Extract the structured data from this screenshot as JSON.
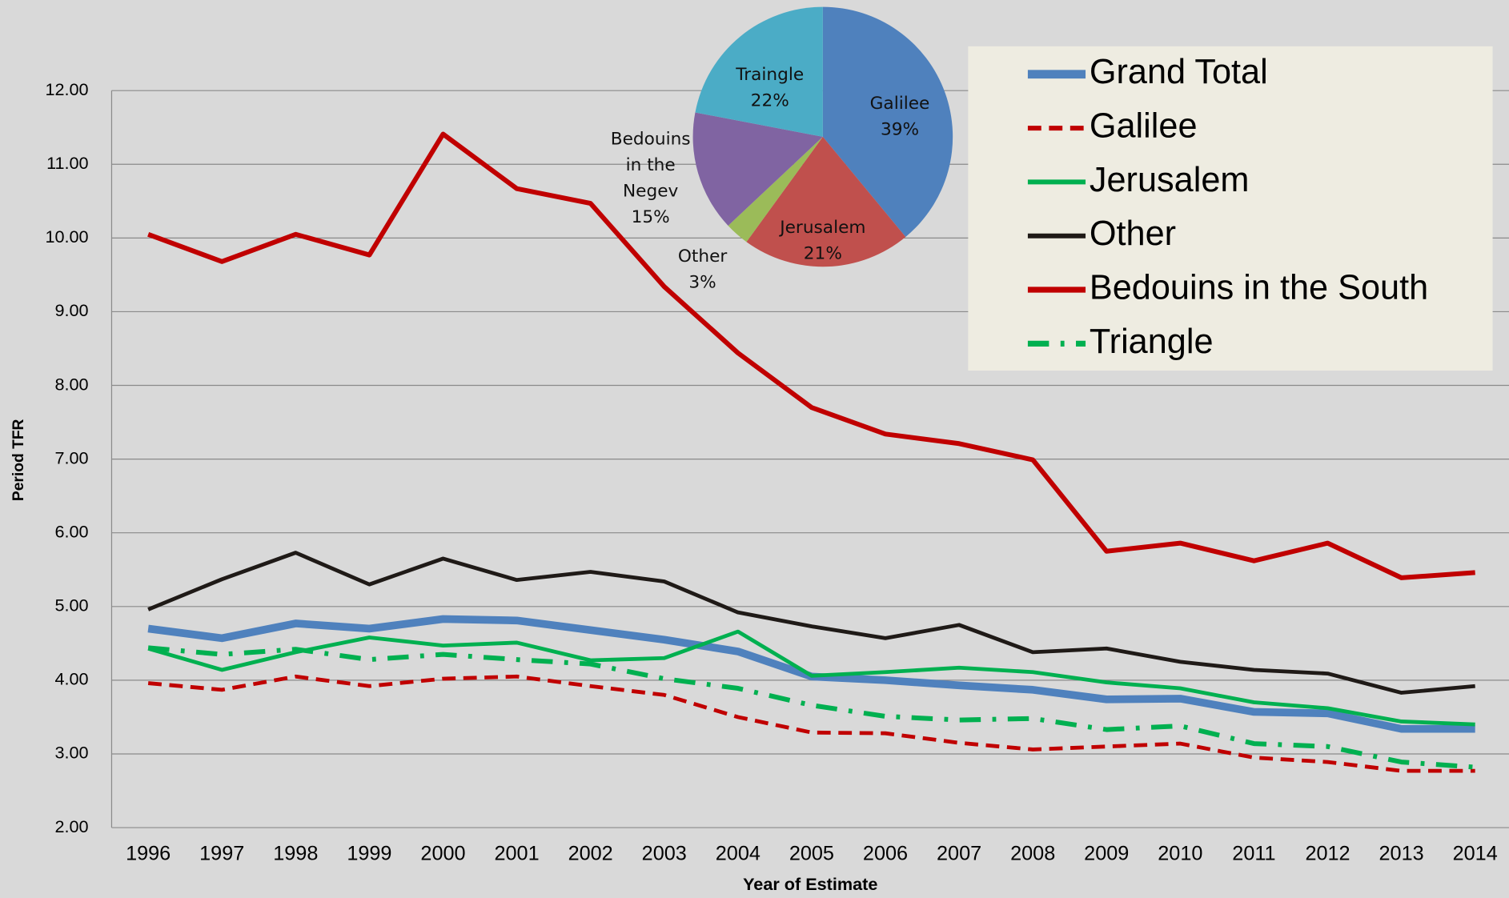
{
  "chart_data": [
    {
      "type": "line",
      "y_label": "Period TFR",
      "x_label": "Year of Estimate",
      "categories": [
        "1996",
        "1997",
        "1998",
        "1999",
        "2000",
        "2001",
        "2002",
        "2003",
        "2004",
        "2005",
        "2006",
        "2007",
        "2008",
        "2009",
        "2010",
        "2011",
        "2012",
        "2013",
        "2014"
      ],
      "ylim": [
        2,
        12
      ],
      "yticks": [
        {
          "value": 2,
          "label": "2.00"
        },
        {
          "value": 3,
          "label": "3.00"
        },
        {
          "value": 4,
          "label": "4.00"
        },
        {
          "value": 5,
          "label": "5.00"
        },
        {
          "value": 6,
          "label": "6.00"
        },
        {
          "value": 7,
          "label": "7.00"
        },
        {
          "value": 8,
          "label": "8.00"
        },
        {
          "value": 9,
          "label": "9.00"
        },
        {
          "value": 10,
          "label": "10.00"
        },
        {
          "value": 11,
          "label": "11.00"
        },
        {
          "value": 12,
          "label": "12.00"
        }
      ],
      "grid": true,
      "legend": "upper right",
      "series": [
        {
          "name": "Grand Total",
          "color": "#4f81bd",
          "style": "solid",
          "width": 8,
          "values": [
            4.7,
            4.57,
            4.77,
            4.7,
            4.83,
            4.81,
            4.68,
            4.55,
            4.39,
            4.05,
            4.0,
            3.93,
            3.87,
            3.74,
            3.75,
            3.57,
            3.55,
            3.34,
            3.34
          ]
        },
        {
          "name": "Galilee",
          "color": "#c00000",
          "style": "dashed",
          "width": 4,
          "values": [
            3.96,
            3.87,
            4.05,
            3.92,
            4.02,
            4.05,
            3.92,
            3.8,
            3.5,
            3.29,
            3.28,
            3.15,
            3.06,
            3.1,
            3.14,
            2.95,
            2.89,
            2.77,
            2.77
          ]
        },
        {
          "name": "Jerusalem",
          "color": "#00b050",
          "style": "solid",
          "width": 4,
          "values": [
            4.43,
            4.14,
            4.38,
            4.58,
            4.47,
            4.51,
            4.27,
            4.3,
            4.66,
            4.06,
            4.11,
            4.17,
            4.11,
            3.97,
            3.89,
            3.7,
            3.62,
            3.44,
            3.4
          ]
        },
        {
          "name": "Other",
          "color": "#1f1a17",
          "style": "solid",
          "width": 4,
          "values": [
            4.96,
            5.37,
            5.73,
            5.3,
            5.65,
            5.36,
            5.47,
            5.34,
            4.92,
            4.73,
            4.57,
            4.75,
            4.38,
            4.43,
            4.25,
            4.14,
            4.09,
            3.83,
            3.92
          ]
        },
        {
          "name": "Bedouins in the South",
          "color": "#c00000",
          "style": "solid",
          "width": 5,
          "values": [
            10.05,
            9.68,
            10.05,
            9.77,
            11.41,
            10.67,
            10.47,
            9.34,
            8.44,
            7.7,
            7.34,
            7.21,
            6.99,
            5.75,
            5.86,
            5.62,
            5.86,
            5.39,
            5.46
          ]
        },
        {
          "name": "Triangle",
          "color": "#00b050",
          "style": "dashdot",
          "width": 5,
          "values": [
            4.44,
            4.35,
            4.42,
            4.28,
            4.35,
            4.28,
            4.22,
            4.02,
            3.89,
            3.66,
            3.51,
            3.46,
            3.48,
            3.33,
            3.38,
            3.14,
            3.1,
            2.89,
            2.82
          ]
        }
      ]
    },
    {
      "type": "pie",
      "categories": [
        "Galilee",
        "Jerusalem",
        "Other",
        "Bedouins in the Negev",
        "Traingle"
      ],
      "values": [
        39,
        21,
        3,
        15,
        22
      ],
      "value_labels": [
        "39%",
        "21%",
        "3%",
        "15%",
        "22%"
      ],
      "colors": [
        "#4f81bd",
        "#c0504d",
        "#9bbb59",
        "#8064a2",
        "#4bacc6"
      ]
    }
  ]
}
